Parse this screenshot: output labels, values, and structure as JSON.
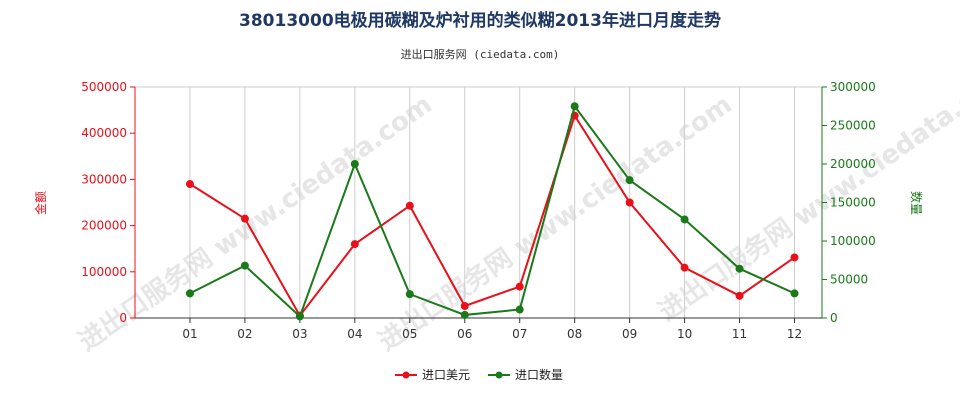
{
  "title": "38013000电极用碳糊及炉衬用的类似糊2013年进口月度走势",
  "subtitle": "进出口服务网 (ciedata.com)",
  "watermark": "进出口服务网 www.ciedata.com",
  "chart_data": {
    "type": "line",
    "categories": [
      "01",
      "02",
      "03",
      "04",
      "05",
      "06",
      "07",
      "08",
      "09",
      "10",
      "11",
      "12"
    ],
    "y_left": {
      "label": "金额",
      "range": [
        0,
        500000
      ],
      "ticks": [
        0,
        100000,
        200000,
        300000,
        400000,
        500000
      ],
      "tick_labels": [
        "0",
        "100000",
        "200000",
        "300000",
        "400000",
        "500000"
      ],
      "color": "#e8101a"
    },
    "y_right": {
      "label": "数量",
      "range": [
        0,
        300000
      ],
      "ticks": [
        0,
        50000,
        100000,
        150000,
        200000,
        250000,
        300000
      ],
      "tick_labels": [
        "0",
        "50000",
        "100000",
        "150000",
        "200000",
        "250000",
        "300000"
      ],
      "color": "#1a7a1a"
    },
    "series": [
      {
        "name": "进口美元",
        "axis": "left",
        "color": "#e8101a",
        "values": [
          290000,
          215000,
          5000,
          160000,
          243000,
          26000,
          68000,
          438000,
          250000,
          109000,
          48000,
          131000
        ]
      },
      {
        "name": "进口数量",
        "axis": "right",
        "color": "#1a7a1a",
        "values": [
          32000,
          68000,
          2000,
          200000,
          31000,
          4000,
          11000,
          275000,
          179000,
          128000,
          64000,
          32000
        ]
      }
    ],
    "grid": "vertical",
    "legend_position": "bottom-center"
  }
}
